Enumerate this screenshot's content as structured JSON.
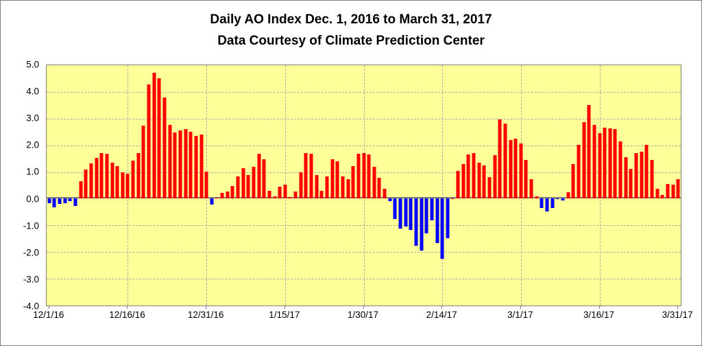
{
  "figure": {
    "title": "Daily AO Index Dec. 1, 2016 to March 31, 2017",
    "subtitle": "Data Courtesy of Climate Prediction Center"
  },
  "chart_data": {
    "type": "bar",
    "title": "Daily AO Index Dec. 1, 2016 to March 31, 2017",
    "subtitle": "Data Courtesy of Climate Prediction Center",
    "xlabel": "",
    "ylabel": "",
    "ylim": [
      -4.0,
      5.0
    ],
    "grid": true,
    "legend": false,
    "plot_background": "#FFFF99",
    "positive_color": "#FF0000",
    "negative_color": "#0000FF",
    "y_tick_labels": [
      "5.0",
      "4.0",
      "3.0",
      "2.0",
      "1.0",
      "0.0",
      "-1.0",
      "-2.0",
      "-3.0",
      "-4.0"
    ],
    "y_tick_values": [
      5.0,
      4.0,
      3.0,
      2.0,
      1.0,
      0.0,
      -1.0,
      -2.0,
      -3.0,
      -4.0
    ],
    "x_tick_labels": [
      "12/1/16",
      "12/16/16",
      "12/31/16",
      "1/15/17",
      "1/30/17",
      "2/14/17",
      "3/1/17",
      "3/16/17",
      "3/31/17"
    ],
    "x_tick_day_indices": [
      0,
      15,
      30,
      45,
      60,
      75,
      90,
      105,
      120
    ],
    "start_date": "12/1/16",
    "end_date": "3/31/17",
    "values": [
      -0.18,
      -0.32,
      -0.2,
      -0.18,
      -0.1,
      -0.28,
      0.65,
      1.1,
      1.33,
      1.52,
      1.72,
      1.68,
      1.36,
      1.21,
      0.98,
      0.95,
      1.43,
      1.7,
      2.75,
      4.28,
      4.73,
      4.5,
      3.8,
      2.77,
      2.48,
      2.57,
      2.61,
      2.51,
      2.34,
      2.41,
      1.01,
      -0.22,
      0.03,
      0.22,
      0.27,
      0.48,
      0.83,
      1.15,
      0.88,
      1.19,
      1.68,
      1.49,
      0.3,
      0.08,
      0.45,
      0.53,
      0.06,
      0.28,
      1.0,
      1.7,
      1.68,
      0.88,
      0.3,
      0.83,
      1.47,
      1.4,
      0.83,
      0.74,
      1.22,
      1.68,
      1.72,
      1.66,
      1.19,
      0.79,
      0.38,
      -0.09,
      -0.77,
      -1.11,
      -1.05,
      -1.17,
      -1.77,
      -1.94,
      -1.3,
      -0.82,
      -1.67,
      -2.26,
      -1.47,
      0.02,
      1.05,
      1.29,
      1.66,
      1.7,
      1.36,
      1.25,
      0.81,
      1.62,
      2.98,
      2.81,
      2.19,
      2.26,
      2.06,
      1.46,
      0.72,
      0.09,
      -0.34,
      -0.47,
      -0.36,
      -0.02,
      -0.06,
      0.24,
      1.29,
      2.01,
      2.86,
      3.52,
      2.77,
      2.45,
      2.66,
      2.64,
      2.6,
      2.15,
      1.55,
      1.13,
      1.7,
      1.77,
      2.01,
      1.44,
      0.38,
      0.13,
      0.54,
      0.52,
      0.73
    ]
  }
}
